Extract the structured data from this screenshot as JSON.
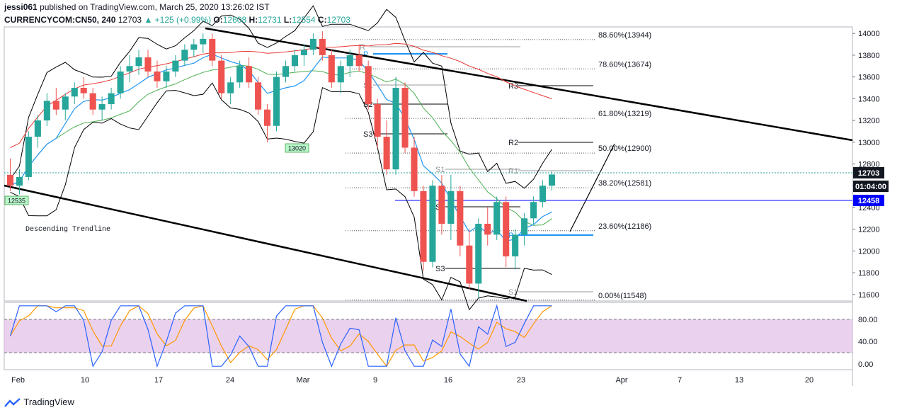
{
  "header": {
    "author": "jessi061",
    "published_text": "published on TradingView.com, March 25, 2020 13:26:02 IST",
    "symbol": "CURRENCYCOM:CN50, 240",
    "last": "12703",
    "change": "+125 (+0.99%)",
    "open_label": "O:",
    "open": "12608",
    "high_label": "H:",
    "high": "12731",
    "low_label": "L:",
    "low": "12554",
    "close_label": "C:",
    "close": "12703"
  },
  "brand": {
    "name": "TradingView",
    "icon": "tradingview-logo-icon"
  },
  "colors": {
    "up_candle": "#26a69a",
    "down_candle": "#ef5350",
    "bollinger": "#000000",
    "ma_blue": "#2196f3",
    "ma_green": "#4caf50",
    "ma_red": "#e53935",
    "stoch_k": "#2962ff",
    "stoch_d": "#ff9800",
    "stoch_band": "#e1bee7",
    "price_label_bg": "#131722",
    "hline_label_bg": "#0000ff"
  },
  "chart_data": {
    "type": "candlestick",
    "price_axis": {
      "ticks": [
        "14000",
        "13800",
        "13600",
        "13400",
        "13200",
        "13000",
        "12800",
        "12600",
        "12400",
        "12200",
        "12000",
        "11800",
        "11600"
      ],
      "range": [
        11540,
        14060
      ]
    },
    "x_axis": {
      "ticks": [
        "Feb",
        "10",
        "17",
        "24",
        "Mar",
        "9",
        "16",
        "23",
        "Apr",
        "7",
        "13",
        "20"
      ]
    },
    "current_price_label": "12703",
    "countdown_label": "01:04:00",
    "hline_label": "12458",
    "fibonacci": [
      {
        "label": "88.60%(13944)",
        "value": 13944
      },
      {
        "label": "78.60%(13674)",
        "value": 13674
      },
      {
        "label": "61.80%(13219)",
        "value": 13219
      },
      {
        "label": "50.00%(12900)",
        "value": 12900
      },
      {
        "label": "38.20%(12581)",
        "value": 12581
      },
      {
        "label": "23.60%(12186)",
        "value": 12186
      },
      {
        "label": "0.00%(11548)",
        "value": 11548
      }
    ],
    "pivot_labels": [
      "R",
      "P",
      "S1",
      "S2",
      "S3",
      "R3",
      "R2",
      "R1",
      "S1",
      "S2",
      "S3",
      "P",
      "S1"
    ],
    "annotations": [
      {
        "text": "13020",
        "value": 13020
      },
      {
        "text": "12535",
        "value": 12535
      },
      {
        "text": "Descending Trendline"
      }
    ],
    "stochastic": {
      "ticks": [
        "80.00",
        "40.00",
        "0.00"
      ],
      "upper": 80,
      "lower": 20
    },
    "candles_approx": [
      [
        12700,
        12850,
        12550,
        12600
      ],
      [
        12600,
        12750,
        12520,
        12680
      ],
      [
        12680,
        13100,
        12650,
        13050
      ],
      [
        13050,
        13250,
        12950,
        13200
      ],
      [
        13200,
        13450,
        13150,
        13380
      ],
      [
        13380,
        13500,
        13250,
        13300
      ],
      [
        13300,
        13450,
        13200,
        13420
      ],
      [
        13420,
        13550,
        13350,
        13500
      ],
      [
        13500,
        13600,
        13400,
        13450
      ],
      [
        13450,
        13500,
        13250,
        13300
      ],
      [
        13300,
        13420,
        13200,
        13350
      ],
      [
        13350,
        13500,
        13300,
        13450
      ],
      [
        13450,
        13700,
        13400,
        13650
      ],
      [
        13650,
        13800,
        13550,
        13700
      ],
      [
        13700,
        13850,
        13620,
        13780
      ],
      [
        13780,
        13850,
        13600,
        13650
      ],
      [
        13650,
        13750,
        13500,
        13560
      ],
      [
        13560,
        13700,
        13500,
        13650
      ],
      [
        13650,
        13800,
        13600,
        13750
      ],
      [
        13750,
        13900,
        13700,
        13850
      ],
      [
        13850,
        13950,
        13780,
        13900
      ],
      [
        13900,
        14000,
        13820,
        13950
      ],
      [
        13950,
        14000,
        13700,
        13750
      ],
      [
        13750,
        13800,
        13400,
        13450
      ],
      [
        13450,
        13600,
        13350,
        13550
      ],
      [
        13550,
        13750,
        13500,
        13700
      ],
      [
        13700,
        13780,
        13500,
        13550
      ],
      [
        13550,
        13600,
        13250,
        13300
      ],
      [
        13300,
        13350,
        13000,
        13150
      ],
      [
        13150,
        13650,
        13100,
        13600
      ],
      [
        13600,
        13750,
        13550,
        13700
      ],
      [
        13700,
        13850,
        13650,
        13800
      ],
      [
        13800,
        13900,
        13700,
        13850
      ],
      [
        13850,
        14000,
        13800,
        13950
      ],
      [
        13950,
        14020,
        13750,
        13800
      ],
      [
        13800,
        13850,
        13500,
        13550
      ],
      [
        13550,
        13750,
        13450,
        13700
      ],
      [
        13700,
        13850,
        13600,
        13800
      ],
      [
        13800,
        13900,
        13650,
        13700
      ],
      [
        13700,
        13750,
        13300,
        13350
      ],
      [
        13350,
        13400,
        12950,
        13050
      ],
      [
        13050,
        13200,
        12700,
        12750
      ],
      [
        12750,
        13600,
        12700,
        13500
      ],
      [
        13500,
        13550,
        12900,
        12950
      ],
      [
        12950,
        13050,
        12500,
        12550
      ],
      [
        12550,
        12600,
        11820,
        11900
      ],
      [
        11900,
        12650,
        11850,
        12600
      ],
      [
        12600,
        12700,
        12150,
        12250
      ],
      [
        12250,
        12700,
        12100,
        12550
      ],
      [
        12550,
        12600,
        11950,
        12050
      ],
      [
        12050,
        12200,
        11650,
        11700
      ],
      [
        11700,
        12300,
        11560,
        12250
      ],
      [
        12250,
        12400,
        12050,
        12150
      ],
      [
        12150,
        12500,
        12100,
        12450
      ],
      [
        12450,
        12500,
        11850,
        11950
      ],
      [
        11950,
        12200,
        11830,
        12150
      ],
      [
        12150,
        12350,
        12050,
        12300
      ],
      [
        12300,
        12500,
        12250,
        12450
      ],
      [
        12450,
        12650,
        12400,
        12600
      ],
      [
        12600,
        12731,
        12554,
        12703
      ]
    ]
  }
}
